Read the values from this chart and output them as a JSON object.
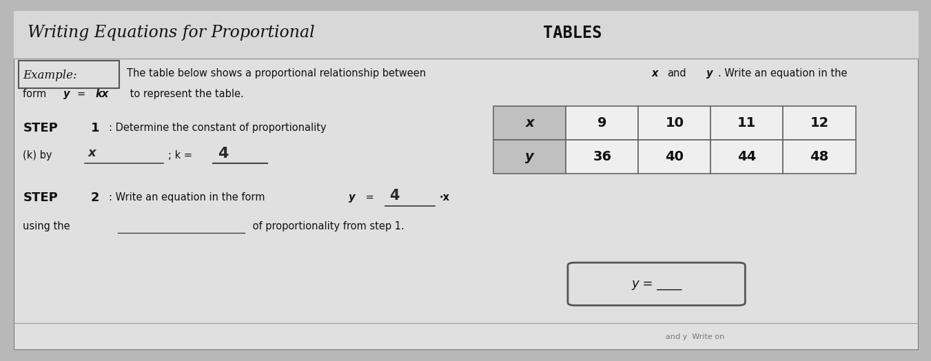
{
  "bg_color": "#b8b8b8",
  "card_color": "#e0e0e0",
  "table_header_color": "#c0c0c0",
  "table_cell_color": "#efefef",
  "text_color": "#111111",
  "dark_text": "#1a1a1a",
  "border_color": "#777777",
  "title_italic": "Writing Equations for Proportional ",
  "title_mono": "TABLES",
  "example_label": "Example:",
  "ex_line1a": "The table below shows a proportional relationship between ",
  "ex_line1b": "x",
  "ex_line1c": " and ",
  "ex_line1d": "y",
  "ex_line1e": ". Write an equation in the",
  "ex_line2a": "form ",
  "ex_line2b": "y",
  "ex_line2c": " = ",
  "ex_line2d": "kx",
  "ex_line2e": " to represent the table.",
  "step1_label": "STEP",
  "step1_num": "1",
  "step1_rest": ": Determine the constant of proportionality",
  "step1b_pre": "(k) by ",
  "step1b_blank_char": "x",
  "step1b_k": "; k =",
  "step1b_kval": "4",
  "step2_label": "STEP",
  "step2_num": "2",
  "step2_rest_a": ": Write an equation in the form ",
  "step2_y": "y",
  "step2_eq": " = ",
  "step2_kval": "4",
  "step2_dot_x": "·x",
  "step2b_pre": "using the ",
  "step2b_end": " of proportionality from step 1.",
  "table_x": [
    "x",
    "9",
    "10",
    "11",
    "12"
  ],
  "table_y": [
    "y",
    "36",
    "40",
    "44",
    "48"
  ],
  "ans_label": "y = ",
  "ans_blank": "____",
  "bottom_hint": "and y  Write on"
}
